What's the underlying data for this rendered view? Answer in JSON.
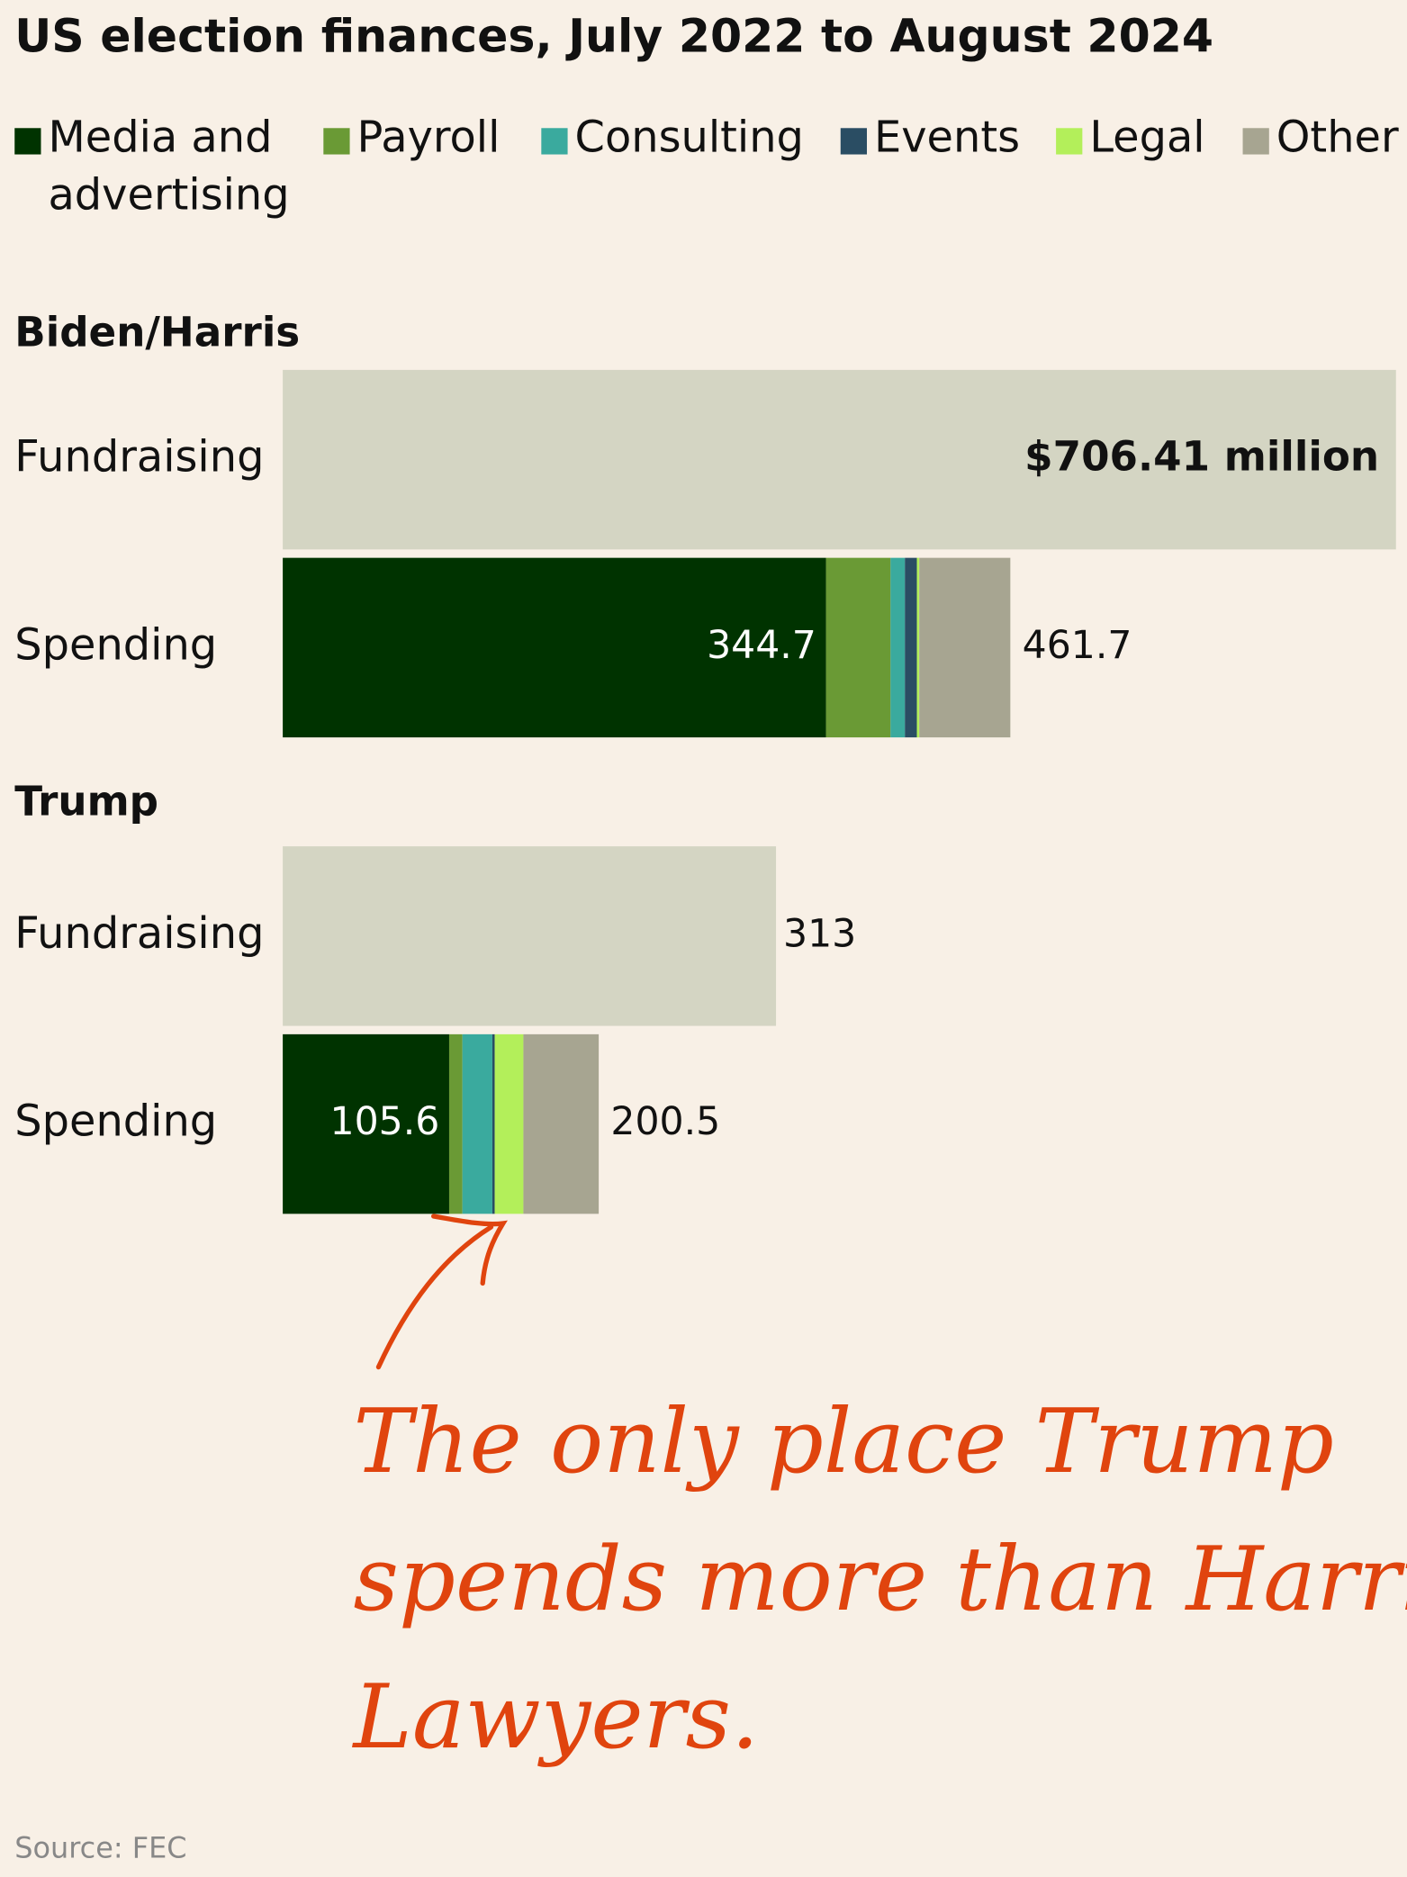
{
  "chart_data": {
    "type": "stacked-hbar",
    "title": "US election finances, July 2022 to August 2024",
    "groups": [
      "Biden/Harris",
      "Trump"
    ],
    "row_labels": [
      "Fundraising",
      "Spending"
    ],
    "fundraising": {
      "color": "#d4d5c3",
      "values": [
        706.41,
        313
      ],
      "value_labels": [
        "$706.41 million",
        "313"
      ]
    },
    "spending_totals": [
      461.7,
      200.5
    ],
    "series": [
      {
        "name": "Media and advertising",
        "color": "#003300",
        "values": [
          344.7,
          105.6
        ]
      },
      {
        "name": "Payroll",
        "color": "#6a9a35",
        "values": [
          41.0,
          8.4
        ]
      },
      {
        "name": "Consulting",
        "color": "#3aaa9e",
        "values": [
          9.1,
          19.0
        ]
      },
      {
        "name": "Events",
        "color": "#2a4d63",
        "values": [
          7.6,
          1.5
        ]
      },
      {
        "name": "Legal",
        "color": "#b3ef5a",
        "values": [
          1.5,
          18.2
        ]
      },
      {
        "name": "Other",
        "color": "#a7a591",
        "values": [
          57.8,
          47.8
        ]
      }
    ],
    "xlim": [
      0,
      706.41
    ],
    "annotation": [
      "The only place Trump",
      "spends more than Harris?",
      "Lawyers."
    ],
    "source": "Source: FEC"
  }
}
